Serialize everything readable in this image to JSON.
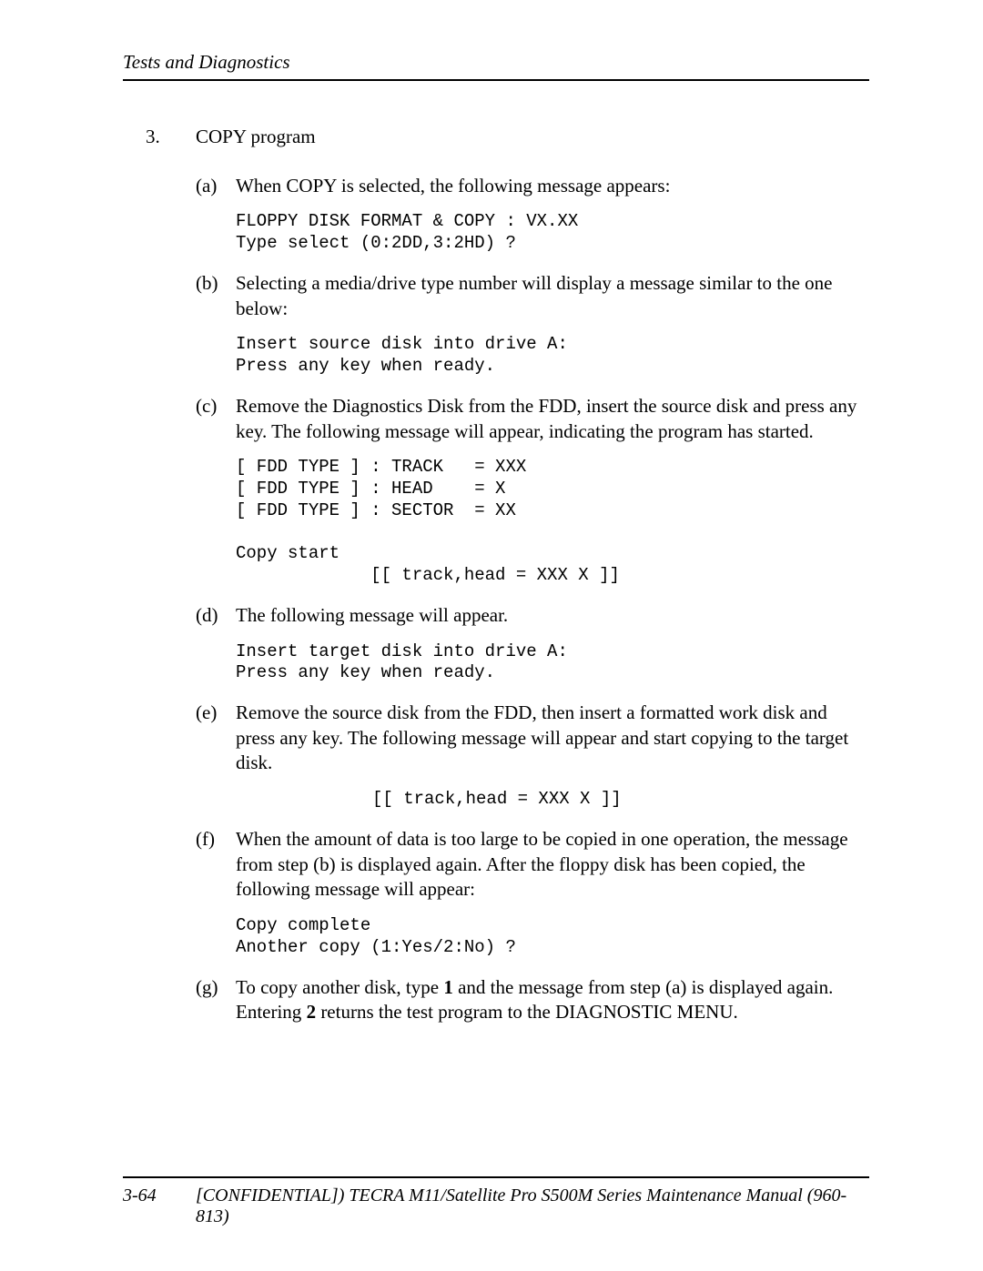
{
  "header": {
    "title": "Tests and Diagnostics"
  },
  "item": {
    "number": "3.",
    "title": "COPY program",
    "sub": {
      "a": {
        "letter": "(a)",
        "text": "When COPY is selected, the following message appears:",
        "code": "FLOPPY DISK FORMAT & COPY : VX.XX\nType select (0:2DD,3:2HD) ?"
      },
      "b": {
        "letter": "(b)",
        "text": "Selecting a media/drive type number will display a message similar to the one below:",
        "code": "Insert source disk into drive A:\nPress any key when ready."
      },
      "c": {
        "letter": "(c)",
        "text": "Remove the Diagnostics Disk from the FDD, insert the source disk and press any key. The following message will appear, indicating the program has started.",
        "code": "[ FDD TYPE ] : TRACK   = XXX\n[ FDD TYPE ] : HEAD    = X\n[ FDD TYPE ] : SECTOR  = XX\n\nCopy start\n             [[ track,head = XXX X ]]"
      },
      "d": {
        "letter": "(d)",
        "text": "The following message will appear.",
        "code": "Insert target disk into drive A:\nPress any key when ready."
      },
      "e": {
        "letter": "(e)",
        "text": "Remove the source disk from the FDD, then insert a formatted work disk and press any key. The following message will appear and start copying to the target disk.",
        "code": "[[ track,head = XXX X ]]"
      },
      "f": {
        "letter": "(f)",
        "text": "When the amount of data is too large to be copied in one operation, the message from step (b) is displayed again. After the floppy disk has been copied, the following message will appear:",
        "code": "Copy complete\nAnother copy (1:Yes/2:No) ?"
      },
      "g": {
        "letter": "(g)",
        "text_pre": "To copy another disk, type ",
        "one": "1",
        "text_mid": " and the message from step (a) is displayed again. Entering ",
        "two": "2",
        "text_post": " returns the test program to the DIAGNOSTIC MENU."
      }
    }
  },
  "footer": {
    "page": "3-64",
    "title": "[CONFIDENTIAL]) TECRA M11/Satellite Pro S500M Series Maintenance Manual (960-813)"
  }
}
